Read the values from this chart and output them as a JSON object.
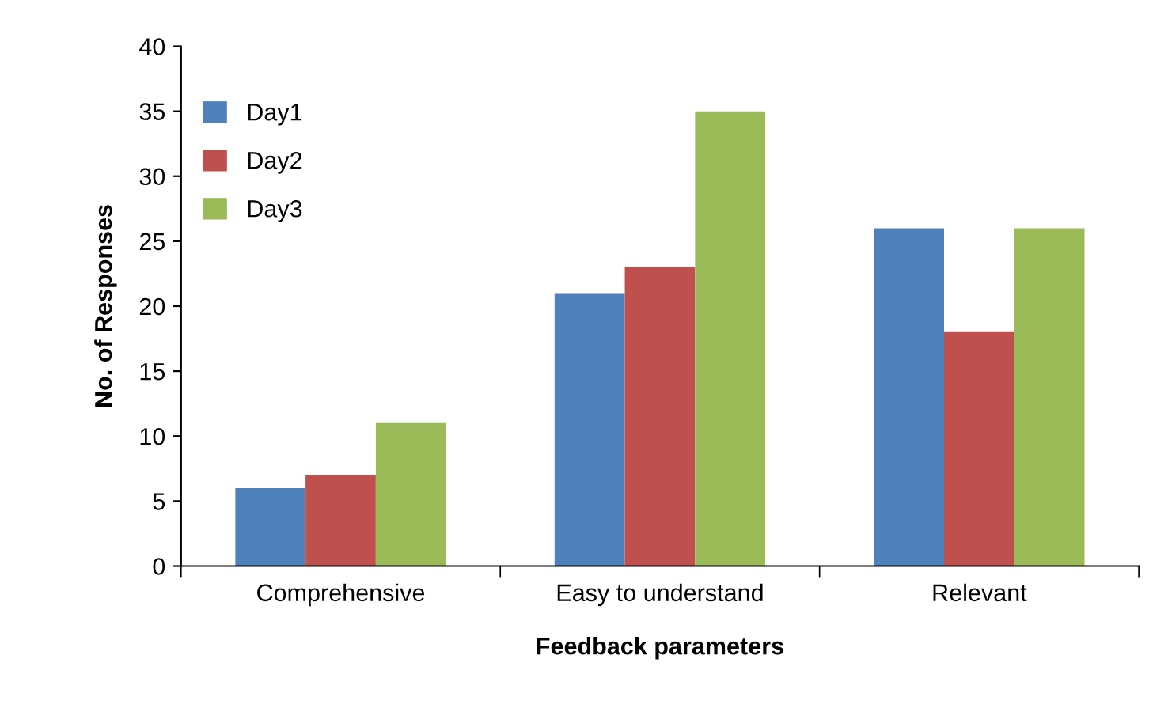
{
  "chart_data": {
    "type": "bar",
    "xlabel": "Feedback parameters",
    "ylabel": "No. of Responses",
    "categories": [
      "Comprehensive",
      "Easy to understand",
      "Relevant"
    ],
    "series": [
      {
        "name": "Day1",
        "color": "#4f81bd",
        "values": [
          6,
          21,
          26
        ]
      },
      {
        "name": "Day2",
        "color": "#c0504d",
        "values": [
          7,
          23,
          18
        ]
      },
      {
        "name": "Day3",
        "color": "#9bbb59",
        "values": [
          11,
          35,
          26
        ]
      }
    ],
    "ylim": [
      0,
      40
    ],
    "yticks": [
      0,
      5,
      10,
      15,
      20,
      25,
      30,
      35,
      40
    ],
    "grid": false,
    "legend": "top left"
  }
}
